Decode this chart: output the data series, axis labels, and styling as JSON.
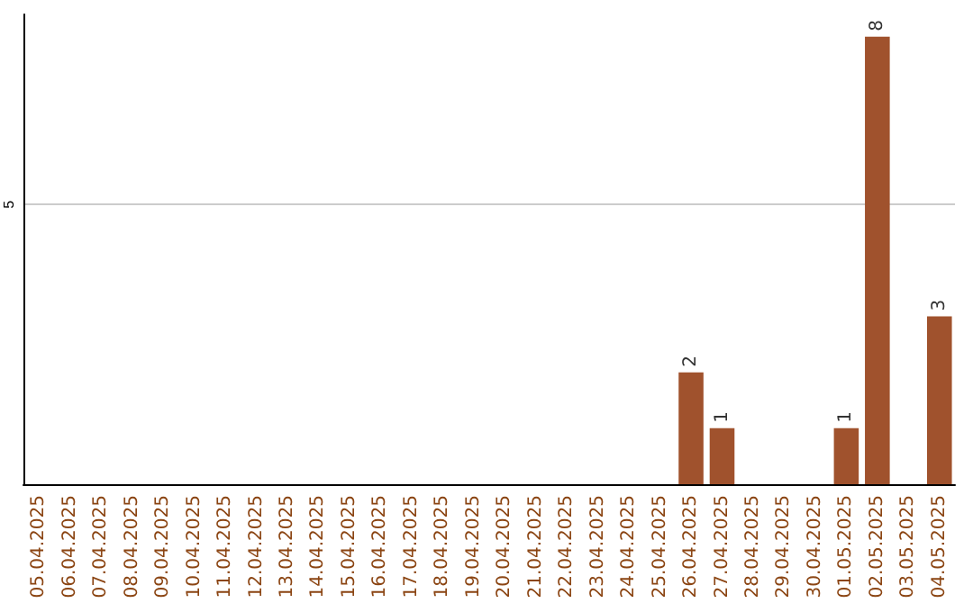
{
  "chart_data": {
    "type": "bar",
    "categories": [
      "05.04.2025",
      "06.04.2025",
      "07.04.2025",
      "08.04.2025",
      "09.04.2025",
      "10.04.2025",
      "11.04.2025",
      "12.04.2025",
      "13.04.2025",
      "14.04.2025",
      "15.04.2025",
      "16.04.2025",
      "17.04.2025",
      "18.04.2025",
      "19.04.2025",
      "20.04.2025",
      "21.04.2025",
      "22.04.2025",
      "23.04.2025",
      "24.04.2025",
      "25.04.2025",
      "26.04.2025",
      "27.04.2025",
      "28.04.2025",
      "29.04.2025",
      "30.04.2025",
      "01.05.2025",
      "02.05.2025",
      "03.05.2025",
      "04.05.2025"
    ],
    "values": [
      null,
      null,
      null,
      null,
      null,
      null,
      null,
      null,
      null,
      null,
      null,
      null,
      null,
      null,
      null,
      null,
      null,
      null,
      null,
      null,
      null,
      2,
      1,
      null,
      null,
      null,
      1,
      8,
      null,
      3
    ],
    "value_labels": [
      null,
      null,
      null,
      null,
      null,
      null,
      null,
      null,
      null,
      null,
      null,
      null,
      null,
      null,
      null,
      null,
      null,
      null,
      null,
      null,
      null,
      "2",
      "1",
      null,
      null,
      null,
      "1",
      "8",
      null,
      "3"
    ],
    "color": "#a0522d",
    "ylim": [
      0,
      8.4
    ],
    "yticks": [
      5
    ],
    "grid": "y"
  }
}
